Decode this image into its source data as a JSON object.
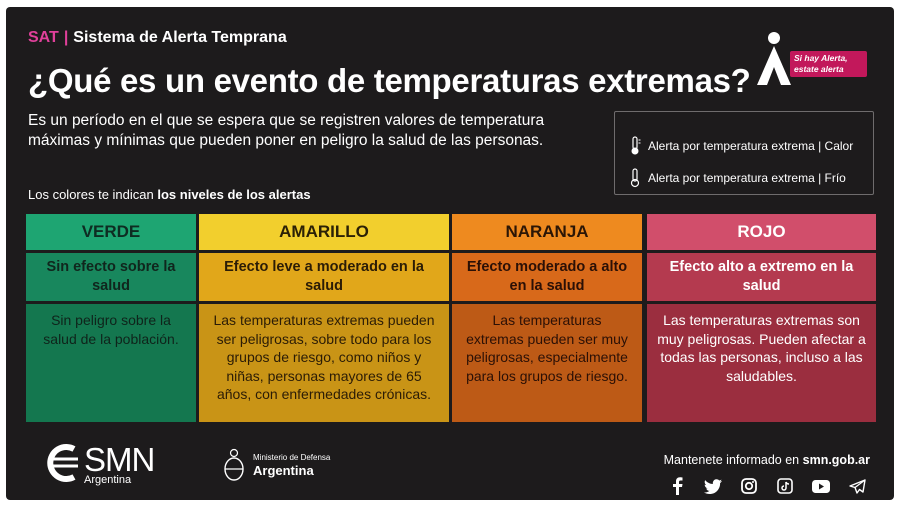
{
  "header": {
    "acronym": "SAT",
    "separator": "|",
    "system_name": "Sistema de Alerta Temprana",
    "title": "¿Qué es un evento de temperaturas extremas?",
    "intro": "Es un período en el que se espera que se registren valores de temperatura máximas y mínimas que pueden poner en peligro la salud de las personas."
  },
  "alert_badge": {
    "line1": "Si hay Alerta,",
    "line2": "estate alerta"
  },
  "legend": {
    "hot": "Alerta por temperatura extrema | Calor",
    "cold": "Alerta por temperatura extrema | Frío"
  },
  "levels_note": {
    "prefix": "Los colores te indican",
    "bold": "los niveles de los alertas"
  },
  "levels": [
    {
      "name": "VERDE",
      "effect": "Sin efecto sobre la salud",
      "description": "Sin peligro sobre la salud de la población."
    },
    {
      "name": "AMARILLO",
      "effect": "Efecto leve a moderado en la salud",
      "description": "Las temperaturas extremas pueden ser peligrosas, sobre todo para los grupos de riesgo, como niños y niñas, personas mayores de 65 años, con enfermedades crónicas."
    },
    {
      "name": "NARANJA",
      "effect": "Efecto moderado a alto en la salud",
      "description": "Las temperaturas extremas pueden ser muy peligrosas, especialmente para los grupos de riesgo."
    },
    {
      "name": "ROJO",
      "effect": "Efecto alto a extremo en la salud",
      "description": "Las temperaturas extremas son muy peligrosas. Pueden afectar a todas las personas, incluso a las saludables."
    }
  ],
  "footer": {
    "smn_name": "SMN",
    "smn_country": "Argentina",
    "ministry_line1": "Ministerio de Defensa",
    "ministry_line2": "Argentina",
    "informed_prefix": "Mantenete informado en",
    "informed_site": "smn.gob.ar"
  },
  "social_icons": [
    "facebook-icon",
    "twitter-icon",
    "instagram-icon",
    "tiktok-icon",
    "youtube-icon",
    "telegram-icon"
  ],
  "colors": {
    "background": "#1d1b1c",
    "accent": "#e0409a",
    "verde": "#1ea572",
    "amarillo": "#f2cf2d",
    "naranja": "#ee8a1f",
    "rojo": "#d14e6b"
  }
}
